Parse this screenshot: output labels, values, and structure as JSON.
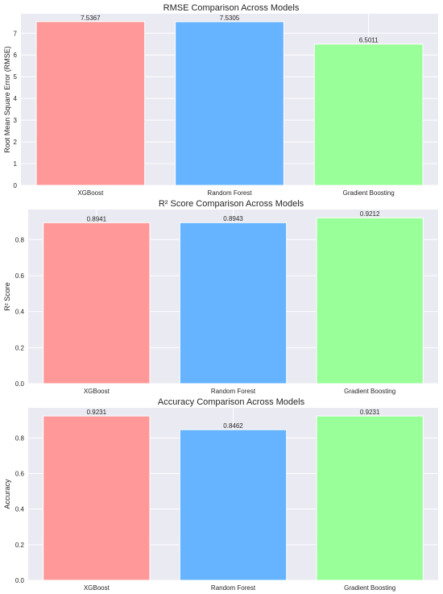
{
  "chart_data": [
    {
      "type": "bar",
      "title": "RMSE Comparison Across Models",
      "xlabel": "",
      "ylabel": "Root Mean Square Error (RMSE)",
      "categories": [
        "XGBoost",
        "Random Forest",
        "Gradient Boosting"
      ],
      "values": [
        7.5367,
        7.5305,
        6.5011
      ],
      "value_labels": [
        "7.5367",
        "7.5305",
        "6.5011"
      ],
      "ylim": [
        0,
        7.9
      ],
      "yticks": [
        0,
        1,
        2,
        3,
        4,
        5,
        6,
        7
      ],
      "ytick_labels": [
        "0",
        "1",
        "2",
        "3",
        "4",
        "5",
        "6",
        "7"
      ],
      "colors": [
        "#ff9999",
        "#66b3ff",
        "#99ff99"
      ],
      "grid": true
    },
    {
      "type": "bar",
      "title": "R² Score Comparison Across Models",
      "xlabel": "",
      "ylabel": "R² Score",
      "categories": [
        "XGBoost",
        "Random Forest",
        "Gradient Boosting"
      ],
      "values": [
        0.8941,
        0.8943,
        0.9212
      ],
      "value_labels": [
        "0.8941",
        "0.8943",
        "0.9212"
      ],
      "ylim": [
        0,
        0.967
      ],
      "yticks": [
        0,
        0.2,
        0.4,
        0.6,
        0.8
      ],
      "ytick_labels": [
        "0.0",
        "0.2",
        "0.4",
        "0.6",
        "0.8"
      ],
      "colors": [
        "#ff9999",
        "#66b3ff",
        "#99ff99"
      ],
      "grid": true
    },
    {
      "type": "bar",
      "title": "Accuracy Comparison Across Models",
      "xlabel": "",
      "ylabel": "Accuracy",
      "categories": [
        "XGBoost",
        "Random Forest",
        "Gradient Boosting"
      ],
      "values": [
        0.9231,
        0.8462,
        0.9231
      ],
      "value_labels": [
        "0.9231",
        "0.8462",
        "0.9231"
      ],
      "ylim": [
        0,
        0.969
      ],
      "yticks": [
        0,
        0.2,
        0.4,
        0.6,
        0.8
      ],
      "ytick_labels": [
        "0.0",
        "0.2",
        "0.4",
        "0.6",
        "0.8"
      ],
      "colors": [
        "#ff9999",
        "#66b3ff",
        "#99ff99"
      ],
      "grid": true
    }
  ]
}
